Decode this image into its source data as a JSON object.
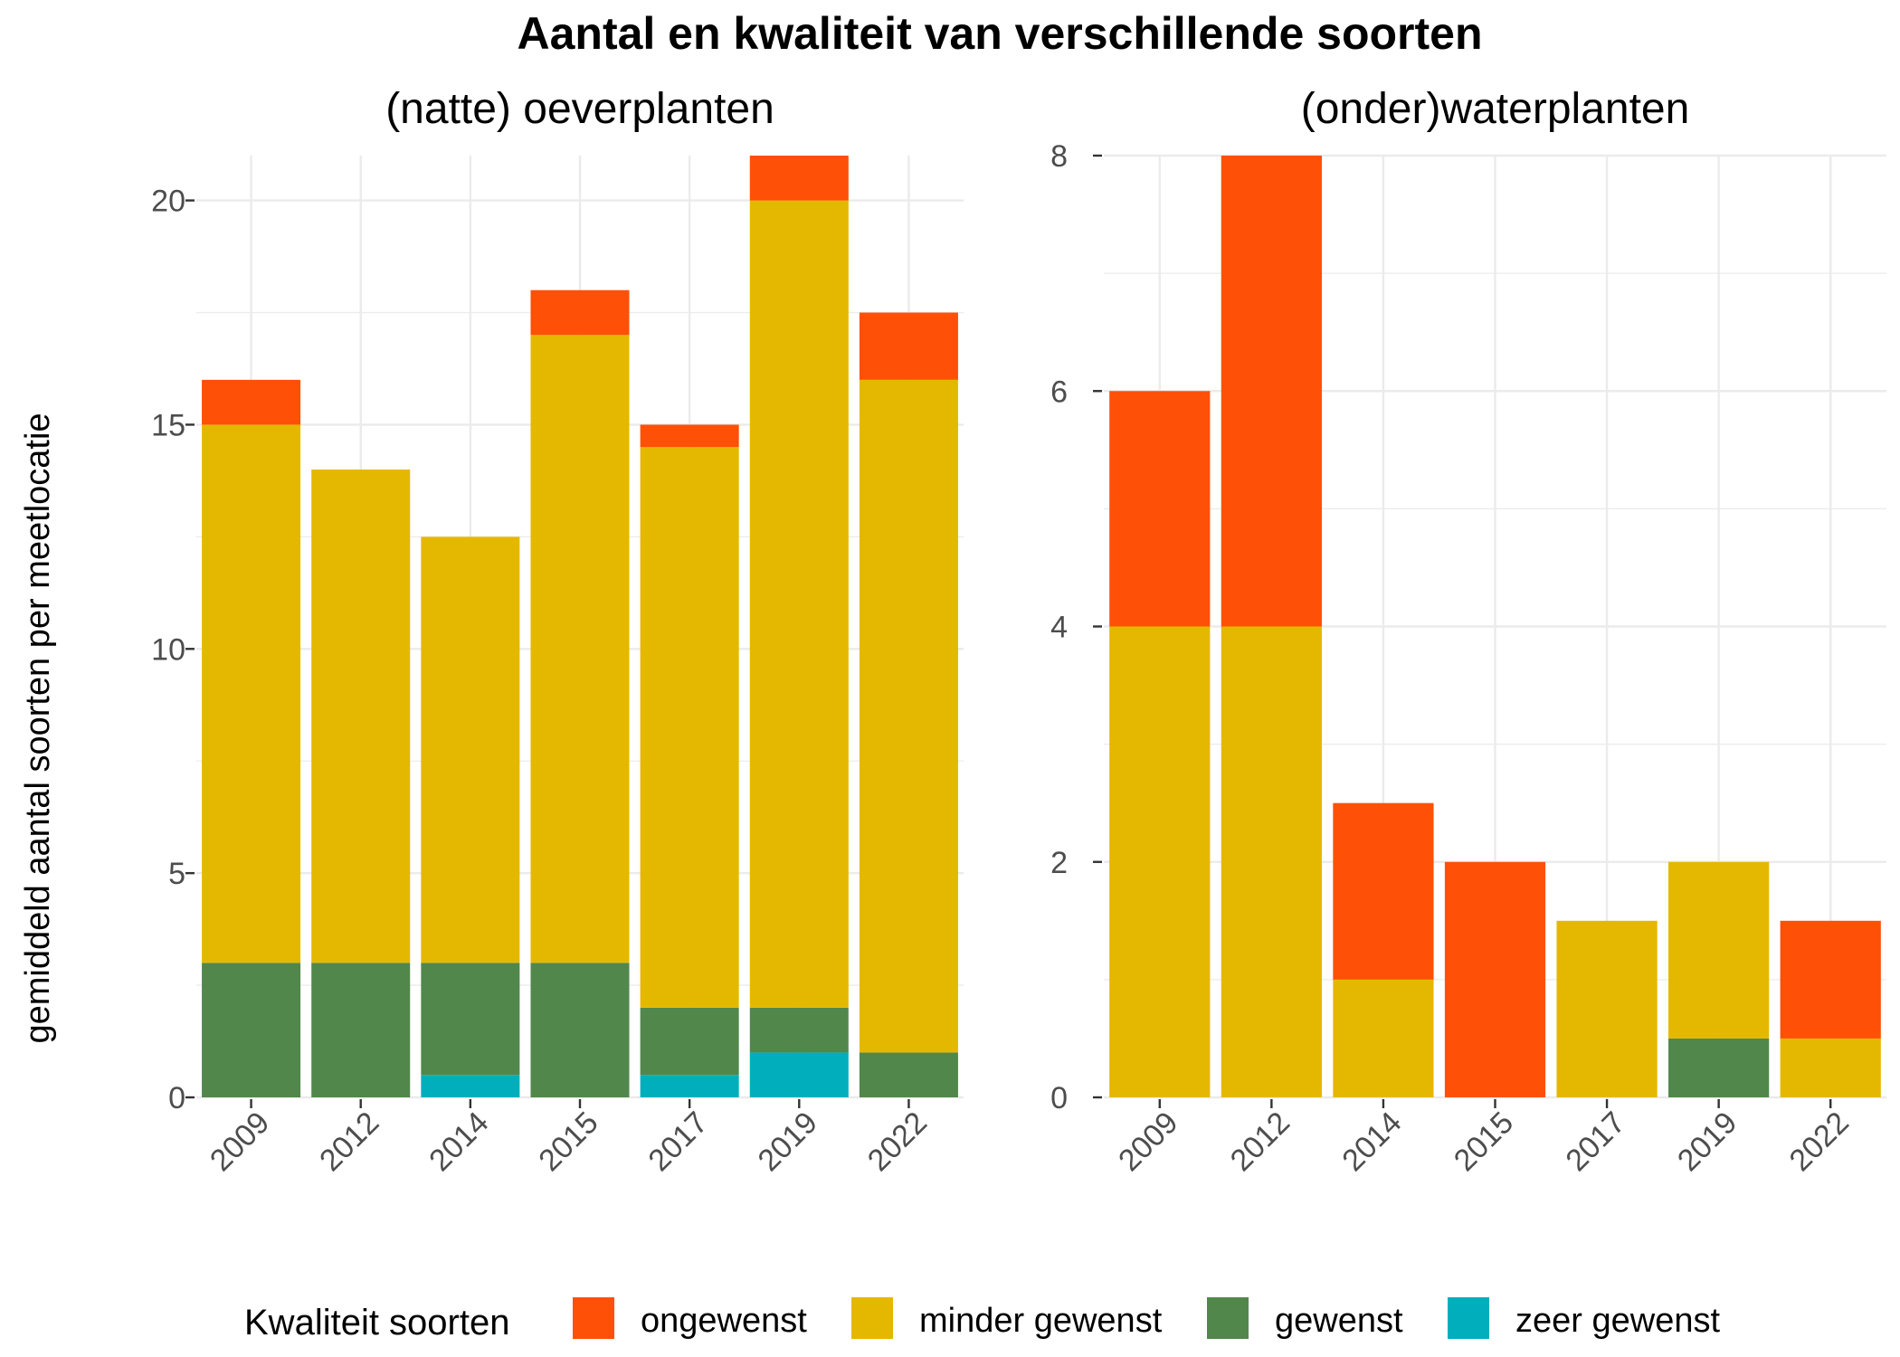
{
  "chart_data": {
    "type": "bar",
    "stacked": true,
    "title": "Aantal en kwaliteit van verschillende soorten",
    "ylabel": "gemiddeld aantal soorten per meetlocatie",
    "legend": {
      "title": "Kwaliteit soorten",
      "position": "bottom",
      "entries": [
        {
          "name": "ongewenst",
          "color": "#FF5007"
        },
        {
          "name": "minder gewenst",
          "color": "#E5B800"
        },
        {
          "name": "gewenst",
          "color": "#52874C"
        },
        {
          "name": "zeer gewenst",
          "color": "#00AFBB"
        }
      ]
    },
    "grid": true,
    "panels": [
      {
        "title": "(natte) oeverplanten",
        "categories": [
          "2009",
          "2012",
          "2014",
          "2015",
          "2017",
          "2019",
          "2022"
        ],
        "ylim": [
          0,
          21
        ],
        "yticks": [
          0,
          5,
          10,
          15,
          20
        ],
        "series": [
          {
            "name": "zeer gewenst",
            "values": [
              0,
              0,
              0.5,
              0,
              0.5,
              1,
              0
            ]
          },
          {
            "name": "gewenst",
            "values": [
              3,
              3,
              2.5,
              3,
              1.5,
              1,
              1
            ]
          },
          {
            "name": "minder gewenst",
            "values": [
              12,
              11,
              9.5,
              14,
              12.5,
              18,
              15
            ]
          },
          {
            "name": "ongewenst",
            "values": [
              1,
              0,
              0,
              1,
              0.5,
              1,
              1.5
            ]
          }
        ]
      },
      {
        "title": "(onder)waterplanten",
        "categories": [
          "2009",
          "2012",
          "2014",
          "2015",
          "2017",
          "2019",
          "2022"
        ],
        "ylim": [
          0,
          8
        ],
        "yticks": [
          0,
          2,
          4,
          6,
          8
        ],
        "series": [
          {
            "name": "zeer gewenst",
            "values": [
              0,
              0,
              0,
              0,
              0,
              0,
              0
            ]
          },
          {
            "name": "gewenst",
            "values": [
              0,
              0,
              0,
              0,
              0,
              0.5,
              0
            ]
          },
          {
            "name": "minder gewenst",
            "values": [
              4,
              4,
              1,
              0,
              1.5,
              1.5,
              0.5
            ]
          },
          {
            "name": "ongewenst",
            "values": [
              2,
              4,
              1.5,
              2,
              0,
              0,
              1
            ]
          }
        ]
      }
    ]
  }
}
